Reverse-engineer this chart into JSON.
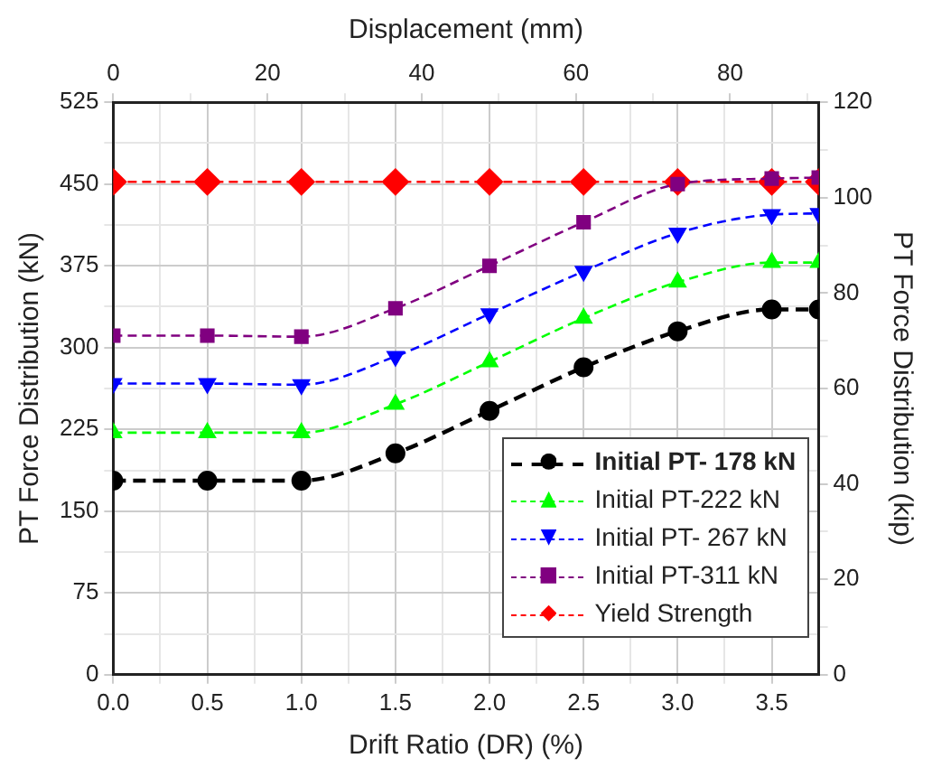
{
  "chart_data": {
    "type": "line",
    "xlabel": "Drift Ratio (DR) (%)",
    "ylabel": "PT Force Distribution (kN)",
    "y2label": "PT Force Distribution (kip)",
    "x2label": "Displacement (mm)",
    "x": [
      0,
      0.5,
      1,
      1.5,
      2,
      2.5,
      3,
      3.5,
      3.75
    ],
    "xlim": [
      0,
      3.75
    ],
    "xticks": [
      {
        "value": 0,
        "label": "0.0"
      },
      {
        "value": 0.25,
        "label": null
      },
      {
        "value": 0.5,
        "label": "0.5"
      },
      {
        "value": 0.75,
        "label": null
      },
      {
        "value": 1,
        "label": "1.0"
      },
      {
        "value": 1.25,
        "label": null
      },
      {
        "value": 1.5,
        "label": "1.5"
      },
      {
        "value": 1.75,
        "label": null
      },
      {
        "value": 2,
        "label": "2.0"
      },
      {
        "value": 2.25,
        "label": null
      },
      {
        "value": 2.5,
        "label": "2.5"
      },
      {
        "value": 2.75,
        "label": null
      },
      {
        "value": 3,
        "label": "3.0"
      },
      {
        "value": 3.25,
        "label": null
      },
      {
        "value": 3.5,
        "label": "3.5"
      }
    ],
    "ylim": [
      0,
      525
    ],
    "yticks": [
      0,
      {
        "value": 37.5,
        "label": null
      },
      75,
      {
        "value": 112.5,
        "label": null
      },
      150,
      {
        "value": 187.5,
        "label": null
      },
      225,
      {
        "value": 262.5,
        "label": null
      },
      300,
      {
        "value": 337.5,
        "label": null
      },
      375,
      {
        "value": 412.5,
        "label": null
      },
      450,
      {
        "value": 487.5,
        "label": null
      },
      525
    ],
    "y2lim": [
      0,
      120
    ],
    "y2ticks": [
      0,
      {
        "value": 10,
        "label": null
      },
      20,
      {
        "value": 30,
        "label": null
      },
      40,
      {
        "value": 50,
        "label": null
      },
      60,
      {
        "value": 70,
        "label": null
      },
      80,
      {
        "value": 90,
        "label": null
      },
      100,
      {
        "value": 110,
        "label": null
      },
      120
    ],
    "x2lim": [
      0,
      91.5
    ],
    "x2ticks": [
      0,
      {
        "value": 10,
        "label": null
      },
      20,
      {
        "value": 30,
        "label": null
      },
      40,
      {
        "value": 50,
        "label": null
      },
      60,
      {
        "value": 70,
        "label": null
      },
      80,
      {
        "value": 90,
        "label": null
      }
    ],
    "grid": true,
    "legend": "bottom right",
    "line_style": "dashed",
    "series": [
      {
        "name": "Initial PT- 178 kN",
        "color": "#000000",
        "marker": "circle",
        "values": [
          178,
          178,
          178,
          203,
          242,
          282,
          315,
          335,
          335
        ]
      },
      {
        "name": "Initial PT-222 kN",
        "color": "#00ff00",
        "marker": "triangle",
        "values": [
          222,
          222,
          222,
          248,
          287,
          327,
          360,
          378,
          378
        ]
      },
      {
        "name": "Initial PT- 267 kN",
        "color": "#0000ff",
        "marker": "triangle_down",
        "values": [
          267,
          267,
          266,
          292,
          331,
          370,
          405,
          422,
          423
        ]
      },
      {
        "name": "Initial PT-311 kN",
        "color": "#800080",
        "marker": "square",
        "values": [
          311,
          311,
          310,
          336,
          375,
          415,
          450,
          455,
          456
        ]
      },
      {
        "name": "Yield Strength",
        "color": "#ff0000",
        "marker": "diamond",
        "values": [
          452,
          452,
          452,
          452,
          452,
          452,
          452,
          452,
          452
        ]
      }
    ]
  }
}
